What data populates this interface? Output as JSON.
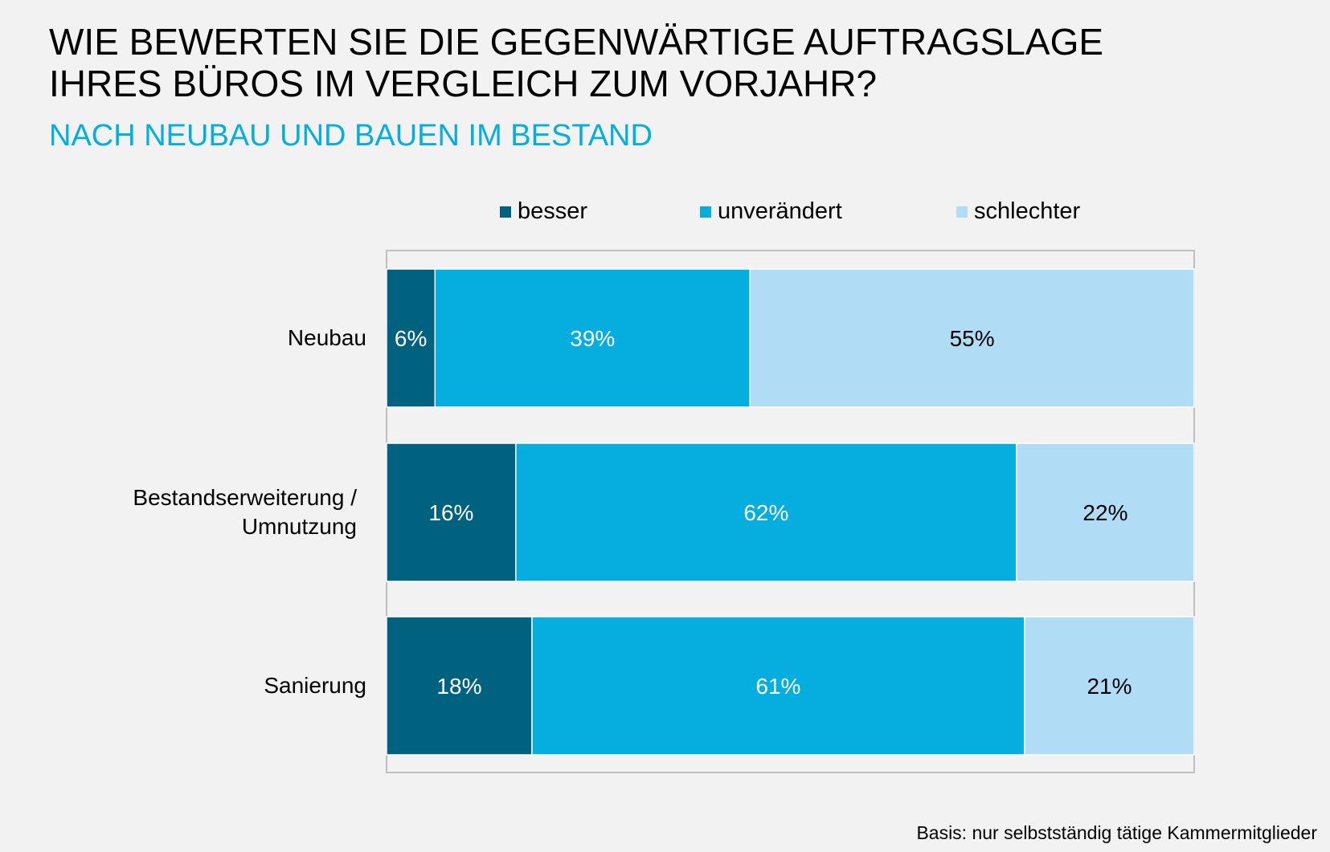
{
  "header": {
    "title": "WIE BEWERTEN SIE DIE GEGENWÄRTIGE AUFTRAGSLAGE\nIHRES BÜROS IM VERGLEICH ZUM VORJAHR?",
    "subtitle": "NACH NEUBAU UND BAUEN IM BESTAND"
  },
  "footnote": "Basis: nur selbstständig tätige Kammermitglieder",
  "colors": {
    "besser": "#00627e",
    "unveraendert": "#05aedf",
    "schlechter": "#b0ddf5",
    "axis": "#bfbfbf"
  },
  "chart_data": {
    "type": "bar",
    "orientation": "horizontal",
    "stacked": "percent",
    "title": "WIE BEWERTEN SIE DIE GEGENWÄRTIGE AUFTRAGSLAGE IHRES BÜROS IM VERGLEICH ZUM VORJAHR?",
    "subtitle": "NACH NEUBAU UND BAUEN IM BESTAND",
    "categories": [
      "Neubau",
      "Bestandserweiterung / Umnutzung",
      "Sanierung"
    ],
    "category_display": [
      "Neubau",
      "Bestandserweiterung /\nUmnutzung",
      "Sanierung"
    ],
    "xlim": [
      0,
      100
    ],
    "legend_position": "top",
    "series": [
      {
        "name": "besser",
        "color": "#00627e",
        "text_color": "#ffffff",
        "values": [
          6,
          16,
          18
        ],
        "labels": [
          "6%",
          "16%",
          "18%"
        ]
      },
      {
        "name": "unverändert",
        "color": "#05aedf",
        "text_color": "#ffffff",
        "values": [
          39,
          62,
          61
        ],
        "labels": [
          "39%",
          "62%",
          "61%"
        ]
      },
      {
        "name": "schlechter",
        "color": "#b0ddf5",
        "text_color": "#000000",
        "values": [
          55,
          22,
          21
        ],
        "labels": [
          "55%",
          "22%",
          "21%"
        ]
      }
    ]
  }
}
